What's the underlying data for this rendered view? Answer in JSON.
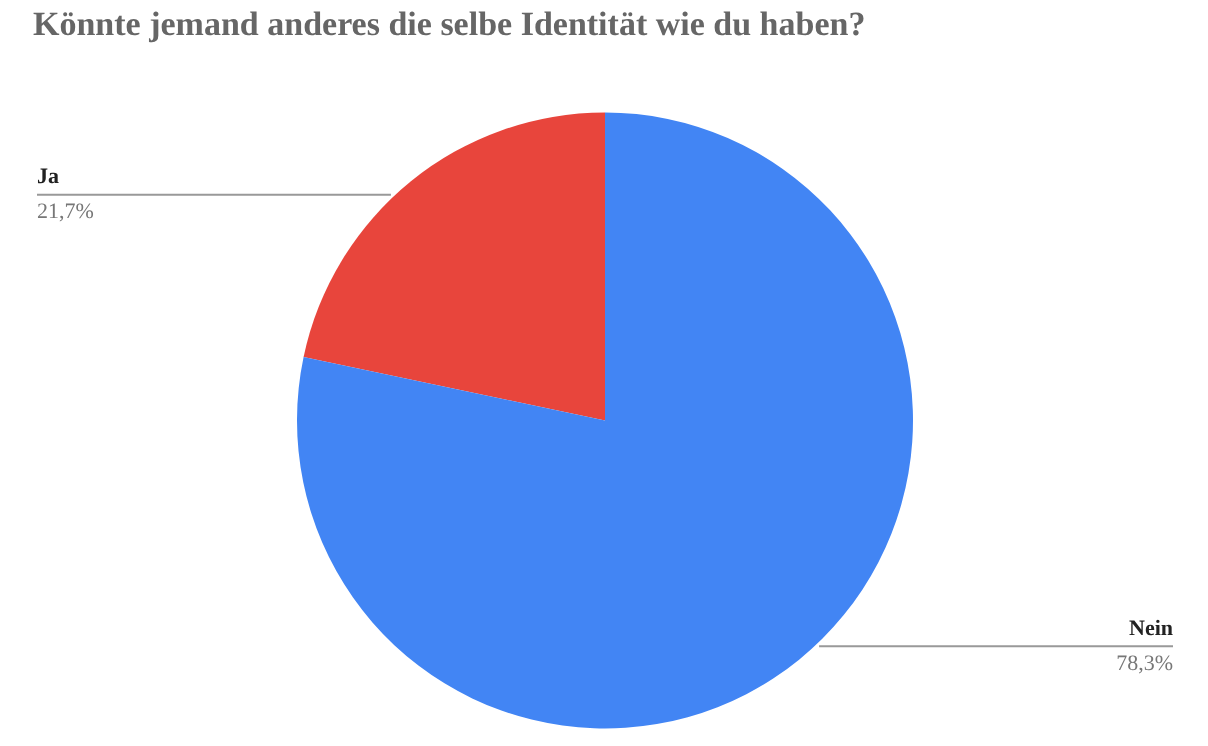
{
  "chart_data": {
    "type": "pie",
    "title": "Könnte jemand anderes die selbe Identität wie du haben?",
    "categories": [
      "Ja",
      "Nein"
    ],
    "values": [
      21.7,
      78.3
    ],
    "value_labels": [
      "21,7%",
      "78,3%"
    ],
    "colors": [
      "#e8453c",
      "#4285f4"
    ]
  }
}
